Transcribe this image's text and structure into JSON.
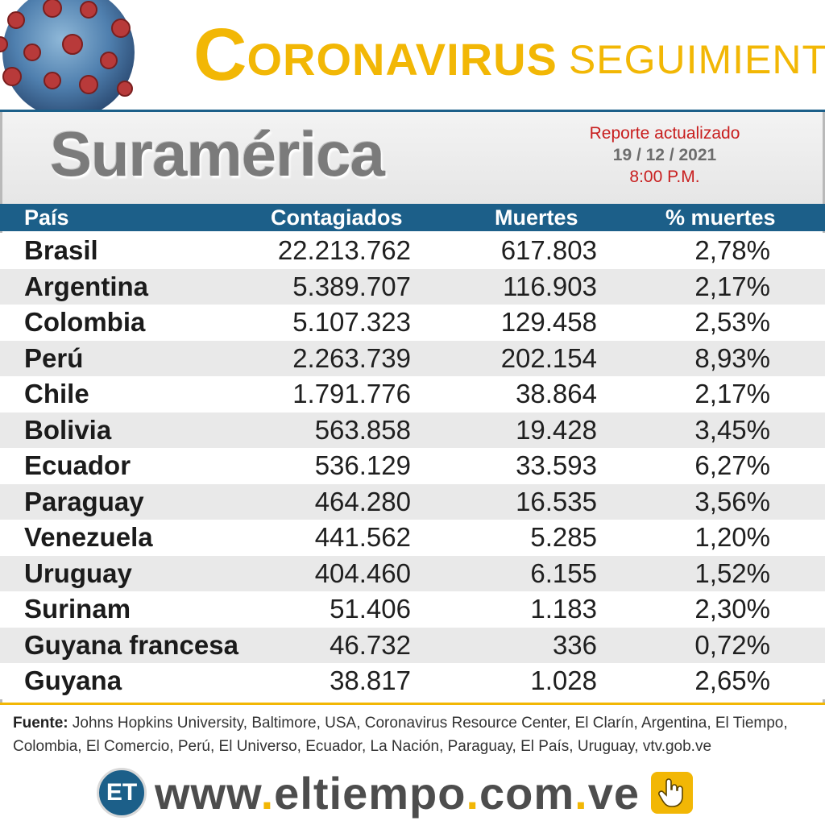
{
  "header": {
    "title_first_letter": "C",
    "title_rest": "ORONAVIRUS",
    "title_second": "SEGUIMIENTO",
    "accent_color": "#f2b705",
    "brand_color": "#1c5f89"
  },
  "region": {
    "name": "Suramérica",
    "report_label": "Reporte actualizado",
    "report_date": "19 / 12 / 2021",
    "report_time": "8:00 P.M."
  },
  "table": {
    "headers": [
      "País",
      "Contagiados",
      "Muertes",
      "% muertes"
    ],
    "rows": [
      {
        "country": "Brasil",
        "cases": "22.213.762",
        "deaths": "617.803",
        "pct": "2,78%"
      },
      {
        "country": "Argentina",
        "cases": "5.389.707",
        "deaths": "116.903",
        "pct": "2,17%"
      },
      {
        "country": "Colombia",
        "cases": "5.107.323",
        "deaths": "129.458",
        "pct": "2,53%"
      },
      {
        "country": "Perú",
        "cases": "2.263.739",
        "deaths": "202.154",
        "pct": "8,93%"
      },
      {
        "country": "Chile",
        "cases": "1.791.776",
        "deaths": "38.864",
        "pct": "2,17%"
      },
      {
        "country": "Bolivia",
        "cases": "563.858",
        "deaths": "19.428",
        "pct": "3,45%"
      },
      {
        "country": "Ecuador",
        "cases": "536.129",
        "deaths": "33.593",
        "pct": "6,27%"
      },
      {
        "country": "Paraguay",
        "cases": "464.280",
        "deaths": "16.535",
        "pct": "3,56%"
      },
      {
        "country": "Venezuela",
        "cases": "441.562",
        "deaths": "5.285",
        "pct": "1,20%"
      },
      {
        "country": "Uruguay",
        "cases": "404.460",
        "deaths": "6.155",
        "pct": "1,52%"
      },
      {
        "country": "Surinam",
        "cases": "51.406",
        "deaths": "1.183",
        "pct": "2,30%"
      },
      {
        "country": "Guyana francesa",
        "cases": "46.732",
        "deaths": "336",
        "pct": "0,72%"
      },
      {
        "country": "Guyana",
        "cases": "38.817",
        "deaths": "1.028",
        "pct": "2,65%"
      }
    ]
  },
  "footer": {
    "source_label": "Fuente:",
    "source_text": "Johns Hopkins University, Baltimore, USA, Coronavirus Resource Center,  El Clarín, Argentina, El Tiempo, Colombia, El Comercio, Perú, El Universo, Ecuador, La Nación, Paraguay, El País, Uruguay, vtv.gob.ve",
    "logo_text": "ET",
    "url_parts": [
      "www",
      ".",
      "eltiempo",
      ".",
      "com",
      ".",
      "ve"
    ],
    "icons": [
      "virus-icon",
      "et-logo-icon",
      "hand-click-icon"
    ]
  }
}
